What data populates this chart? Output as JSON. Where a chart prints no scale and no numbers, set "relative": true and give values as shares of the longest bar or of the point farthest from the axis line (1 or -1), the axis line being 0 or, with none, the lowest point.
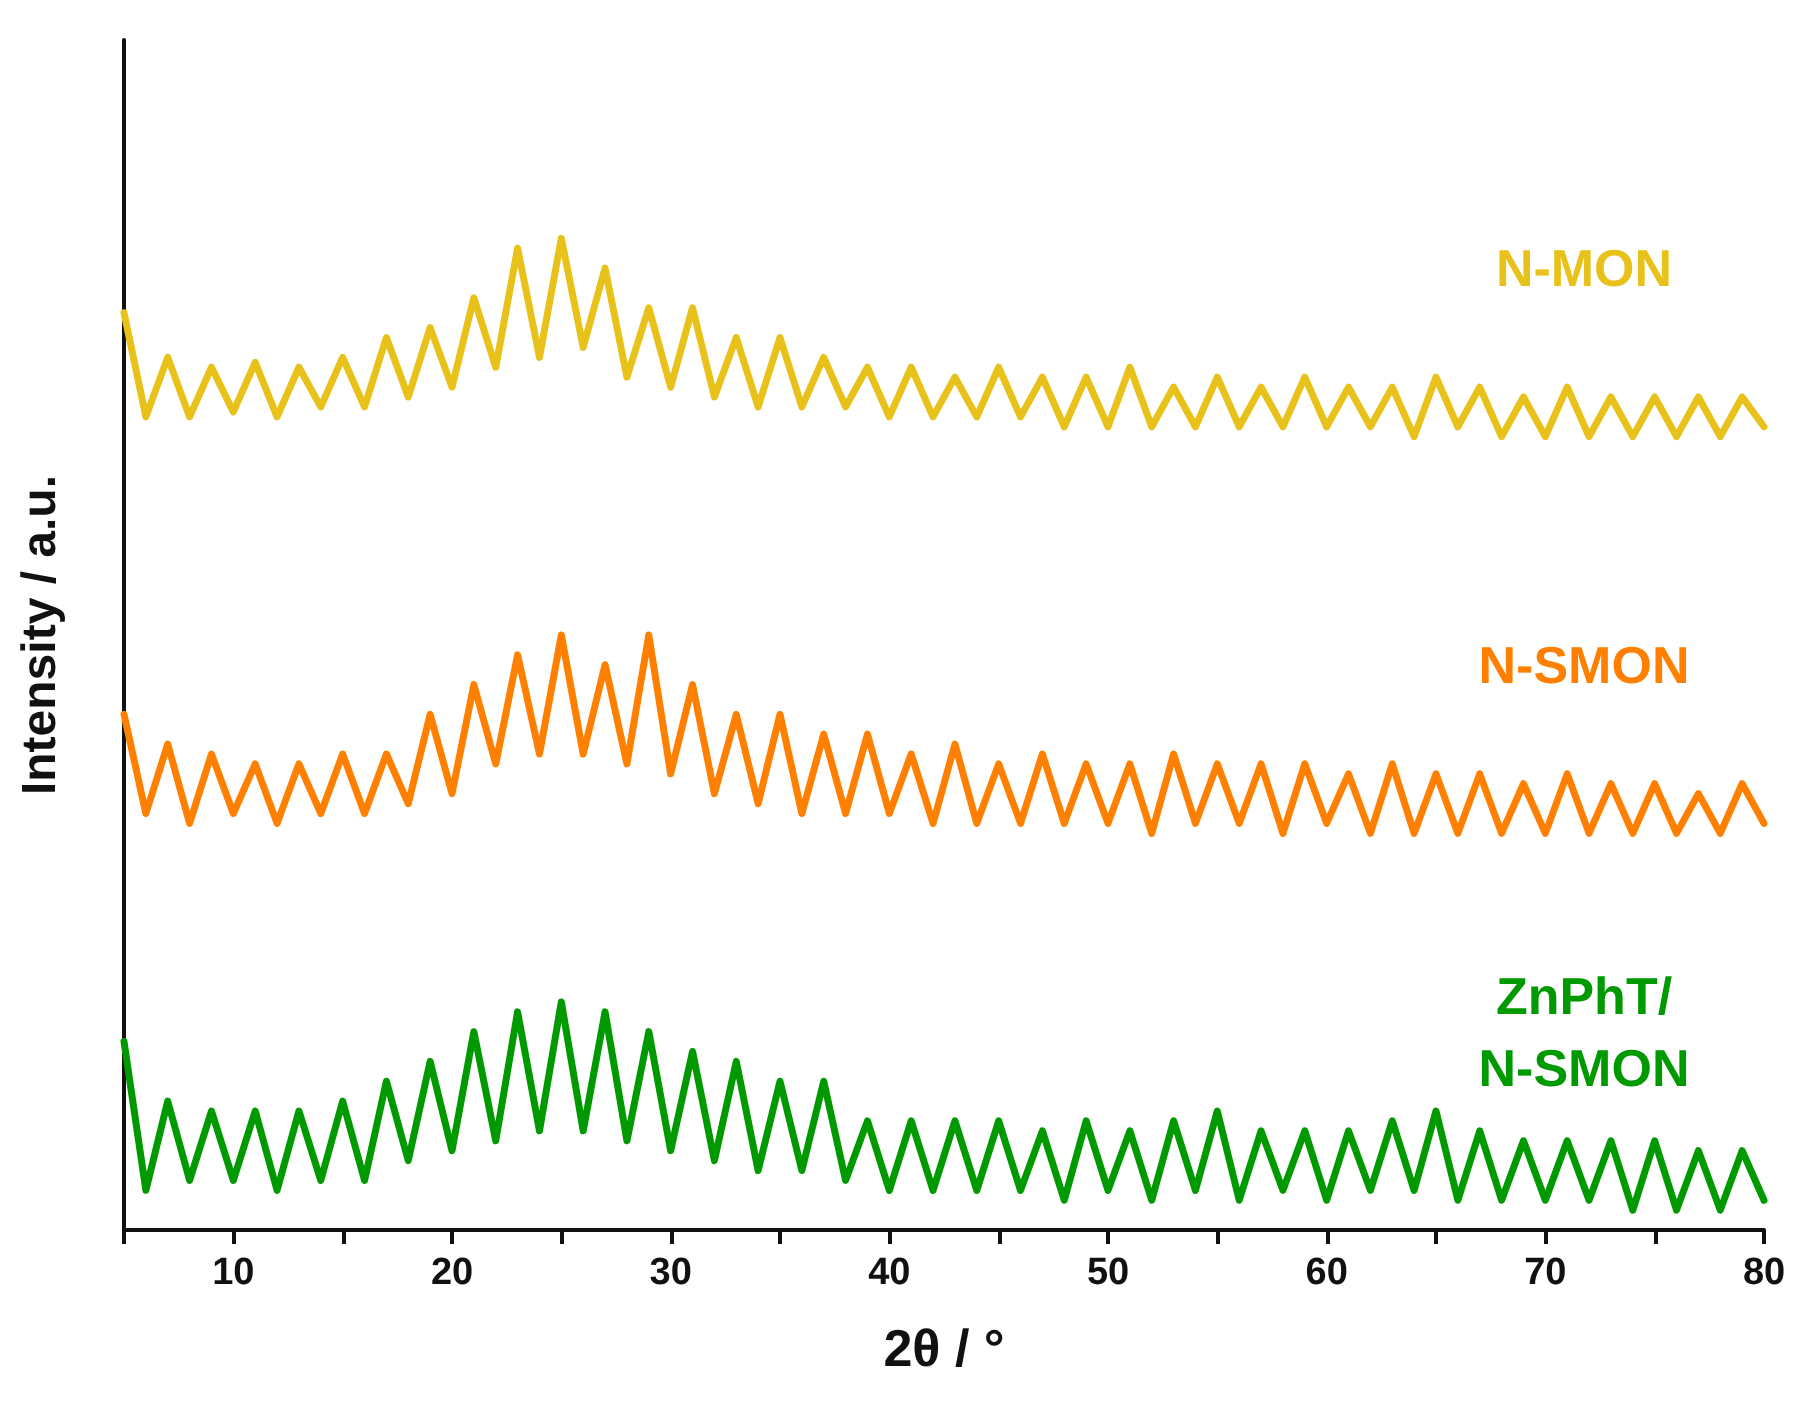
{
  "chart_data": {
    "type": "line",
    "xlabel": "2θ / °",
    "ylabel": "Intensity / a.u.",
    "relative": true,
    "x": [
      5,
      6,
      7,
      8,
      9,
      10,
      11,
      12,
      13,
      14,
      15,
      16,
      17,
      18,
      19,
      20,
      21,
      22,
      23,
      24,
      25,
      26,
      27,
      28,
      29,
      30,
      31,
      32,
      33,
      34,
      35,
      36,
      37,
      38,
      39,
      40,
      41,
      42,
      43,
      44,
      45,
      46,
      47,
      48,
      49,
      50,
      51,
      52,
      53,
      54,
      55,
      56,
      57,
      58,
      59,
      60,
      61,
      62,
      63,
      64,
      65,
      66,
      67,
      68,
      69,
      70,
      71,
      72,
      73,
      74,
      75,
      76,
      77,
      78,
      79,
      80
    ],
    "xlim": [
      5,
      80
    ],
    "xticks": [
      {
        "value": 5,
        "label": null
      },
      10,
      {
        "value": 15,
        "label": null
      },
      20,
      {
        "value": 25,
        "label": null
      },
      30,
      {
        "value": 35,
        "label": null
      },
      40,
      {
        "value": 45,
        "label": null
      },
      50,
      {
        "value": 55,
        "label": null
      },
      60,
      {
        "value": 65,
        "label": null
      },
      70,
      {
        "value": 75,
        "label": null
      },
      80
    ],
    "tick_labels": "x",
    "grid": false,
    "legend": false,
    "marker": "none",
    "line_style": "solid",
    "series": [
      {
        "name": "N-MON",
        "color": "#e8c21a",
        "values": [
          0.925,
          0.82,
          0.88,
          0.82,
          0.87,
          0.825,
          0.875,
          0.82,
          0.87,
          0.83,
          0.88,
          0.83,
          0.9,
          0.84,
          0.91,
          0.85,
          0.94,
          0.87,
          0.99,
          0.88,
          1.0,
          0.89,
          0.97,
          0.86,
          0.93,
          0.85,
          0.93,
          0.84,
          0.9,
          0.83,
          0.9,
          0.83,
          0.88,
          0.83,
          0.87,
          0.82,
          0.87,
          0.82,
          0.86,
          0.82,
          0.87,
          0.82,
          0.86,
          0.81,
          0.86,
          0.81,
          0.87,
          0.81,
          0.85,
          0.81,
          0.86,
          0.81,
          0.85,
          0.81,
          0.86,
          0.81,
          0.85,
          0.81,
          0.85,
          0.8,
          0.86,
          0.81,
          0.85,
          0.8,
          0.84,
          0.8,
          0.85,
          0.8,
          0.84,
          0.8,
          0.84,
          0.8,
          0.84,
          0.8,
          0.84,
          0.81
        ]
      },
      {
        "name": "N-SMON",
        "color": "#ff8000",
        "values": [
          0.52,
          0.42,
          0.49,
          0.41,
          0.48,
          0.42,
          0.47,
          0.41,
          0.47,
          0.42,
          0.48,
          0.42,
          0.48,
          0.43,
          0.52,
          0.44,
          0.55,
          0.47,
          0.58,
          0.48,
          0.6,
          0.48,
          0.57,
          0.47,
          0.6,
          0.46,
          0.55,
          0.44,
          0.52,
          0.43,
          0.52,
          0.42,
          0.5,
          0.42,
          0.5,
          0.42,
          0.48,
          0.41,
          0.49,
          0.41,
          0.47,
          0.41,
          0.48,
          0.41,
          0.47,
          0.41,
          0.47,
          0.4,
          0.48,
          0.41,
          0.47,
          0.41,
          0.47,
          0.4,
          0.47,
          0.41,
          0.46,
          0.4,
          0.47,
          0.4,
          0.46,
          0.4,
          0.46,
          0.4,
          0.45,
          0.4,
          0.46,
          0.4,
          0.45,
          0.4,
          0.45,
          0.4,
          0.44,
          0.4,
          0.45,
          0.41
        ]
      },
      {
        "name": "ZnPhT/\nN-SMON",
        "color": "#009a00",
        "values": [
          0.19,
          0.04,
          0.13,
          0.05,
          0.12,
          0.05,
          0.12,
          0.04,
          0.12,
          0.05,
          0.13,
          0.05,
          0.15,
          0.07,
          0.17,
          0.08,
          0.2,
          0.09,
          0.22,
          0.1,
          0.23,
          0.1,
          0.22,
          0.09,
          0.2,
          0.08,
          0.18,
          0.07,
          0.17,
          0.06,
          0.15,
          0.06,
          0.15,
          0.05,
          0.11,
          0.04,
          0.11,
          0.04,
          0.11,
          0.04,
          0.11,
          0.04,
          0.1,
          0.03,
          0.11,
          0.04,
          0.1,
          0.03,
          0.11,
          0.04,
          0.12,
          0.03,
          0.1,
          0.04,
          0.1,
          0.03,
          0.1,
          0.04,
          0.11,
          0.04,
          0.12,
          0.03,
          0.1,
          0.03,
          0.09,
          0.03,
          0.09,
          0.03,
          0.09,
          0.02,
          0.09,
          0.02,
          0.08,
          0.02,
          0.08,
          0.03
        ]
      }
    ]
  }
}
